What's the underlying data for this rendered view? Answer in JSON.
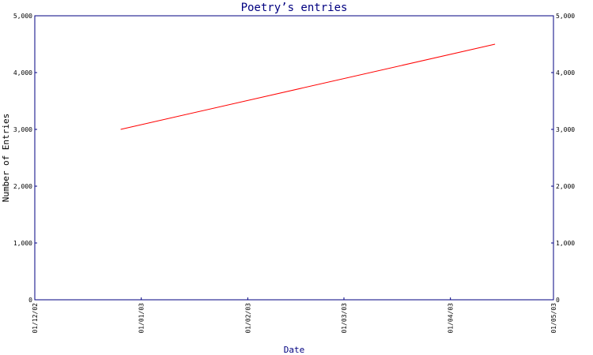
{
  "chart_data": {
    "type": "line",
    "title": "Poetry’s entries",
    "xlabel": "Date",
    "ylabel": "Number of Entries",
    "x_tick_labels": [
      "01/12/02",
      "01/01/03",
      "01/02/03",
      "01/03/03",
      "01/04/03",
      "01/05/03"
    ],
    "y_tick_labels": [
      "0",
      "1,000",
      "2,000",
      "3,000",
      "4,000",
      "5,000"
    ],
    "y_ticks": [
      0,
      1000,
      2000,
      3000,
      4000,
      5000
    ],
    "ylim": [
      0,
      5000
    ],
    "xlim": [
      "2002-12-01",
      "2003-05-01"
    ],
    "series": [
      {
        "x": [
          "2002-12-26",
          "2003-04-14"
        ],
        "values": [
          3000,
          4500
        ]
      }
    ],
    "grid": false,
    "right_axis": true
  },
  "colors": {
    "axis": "#000080",
    "line": "#ff0000",
    "title": "#000080",
    "background": "#ffffff"
  }
}
